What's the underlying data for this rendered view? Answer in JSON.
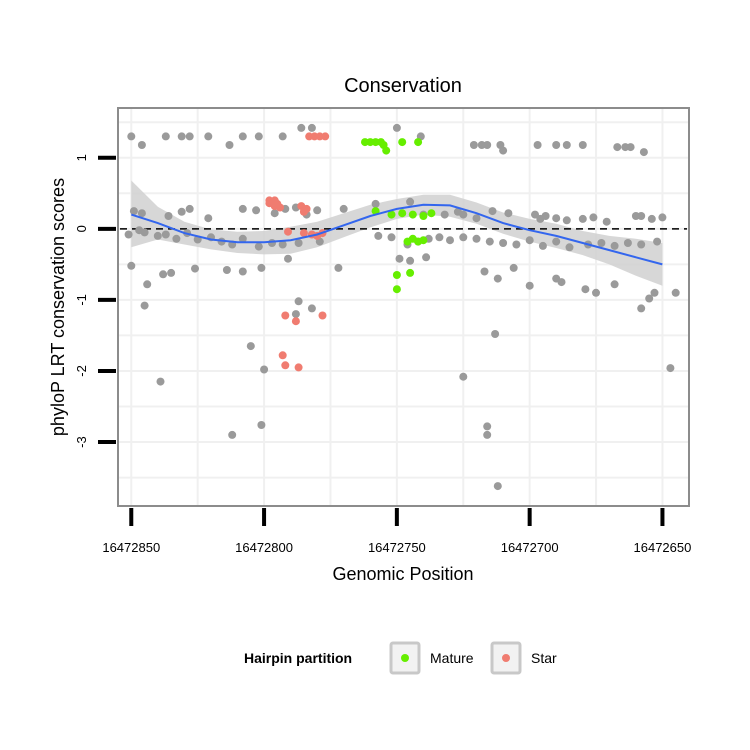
{
  "chart_data": {
    "type": "scatter",
    "title": "Conservation",
    "xlabel": "Genomic Position",
    "ylabel": "phyloP LRT conservation scores",
    "x_reversed": true,
    "xlim": [
      16472855,
      16472640
    ],
    "ylim": [
      -3.9,
      1.7
    ],
    "x_ticks": [
      16472850,
      16472800,
      16472750,
      16472700,
      16472650
    ],
    "x_tick_labels": [
      "16472850",
      "16472800",
      "16472750",
      "16472700",
      "16472650"
    ],
    "y_ticks": [
      1,
      0,
      -1,
      -2,
      -3
    ],
    "y_tick_labels": [
      "1",
      "0",
      "-1",
      "-2",
      "-3"
    ],
    "reference_line": {
      "y": 0,
      "style": "dashed"
    },
    "legend": {
      "title": "Hairpin partition",
      "position": "bottom",
      "entries": [
        {
          "label": "Mature",
          "color": "#66ee00"
        },
        {
          "label": "Star",
          "color": "#f07c70"
        }
      ]
    },
    "colors": {
      "other": "#9a9a9a",
      "Mature": "#66ee00",
      "Star": "#f07c70",
      "smooth": "#3366ee",
      "band": "#d0d0d0"
    },
    "series": [
      {
        "name": "Other",
        "points": [
          [
            16472850,
            1.3
          ],
          [
            16472846,
            1.18
          ],
          [
            16472837,
            1.3
          ],
          [
            16472831,
            1.3
          ],
          [
            16472828,
            1.3
          ],
          [
            16472821,
            1.3
          ],
          [
            16472813,
            1.18
          ],
          [
            16472808,
            1.3
          ],
          [
            16472802,
            1.3
          ],
          [
            16472793,
            1.3
          ],
          [
            16472786,
            1.42
          ],
          [
            16472782,
            1.42
          ],
          [
            16472750,
            1.42
          ],
          [
            16472741,
            1.3
          ],
          [
            16472721,
            1.18
          ],
          [
            16472718,
            1.18
          ],
          [
            16472716,
            1.18
          ],
          [
            16472711,
            1.18
          ],
          [
            16472710,
            1.1
          ],
          [
            16472697,
            1.18
          ],
          [
            16472690,
            1.18
          ],
          [
            16472686,
            1.18
          ],
          [
            16472680,
            1.18
          ],
          [
            16472667,
            1.15
          ],
          [
            16472664,
            1.15
          ],
          [
            16472662,
            1.15
          ],
          [
            16472657,
            1.08
          ],
          [
            16472849,
            0.25
          ],
          [
            16472846,
            0.22
          ],
          [
            16472836,
            0.18
          ],
          [
            16472831,
            0.24
          ],
          [
            16472828,
            0.28
          ],
          [
            16472821,
            0.15
          ],
          [
            16472808,
            0.28
          ],
          [
            16472803,
            0.26
          ],
          [
            16472796,
            0.22
          ],
          [
            16472792,
            0.28
          ],
          [
            16472788,
            0.3
          ],
          [
            16472784,
            0.2
          ],
          [
            16472780,
            0.26
          ],
          [
            16472770,
            0.28
          ],
          [
            16472758,
            0.35
          ],
          [
            16472745,
            0.38
          ],
          [
            16472740,
            0.2
          ],
          [
            16472732,
            0.2
          ],
          [
            16472727,
            0.24
          ],
          [
            16472725,
            0.2
          ],
          [
            16472720,
            0.15
          ],
          [
            16472714,
            0.25
          ],
          [
            16472708,
            0.22
          ],
          [
            16472698,
            0.2
          ],
          [
            16472696,
            0.14
          ],
          [
            16472694,
            0.18
          ],
          [
            16472690,
            0.15
          ],
          [
            16472686,
            0.12
          ],
          [
            16472680,
            0.14
          ],
          [
            16472676,
            0.16
          ],
          [
            16472671,
            0.1
          ],
          [
            16472660,
            0.18
          ],
          [
            16472658,
            0.18
          ],
          [
            16472654,
            0.14
          ],
          [
            16472650,
            0.16
          ],
          [
            16472851,
            -0.08
          ],
          [
            16472847,
            -0.02
          ],
          [
            16472845,
            -0.05
          ],
          [
            16472840,
            -0.1
          ],
          [
            16472837,
            -0.08
          ],
          [
            16472833,
            -0.14
          ],
          [
            16472829,
            -0.06
          ],
          [
            16472825,
            -0.15
          ],
          [
            16472820,
            -0.12
          ],
          [
            16472816,
            -0.18
          ],
          [
            16472812,
            -0.22
          ],
          [
            16472808,
            -0.14
          ],
          [
            16472802,
            -0.25
          ],
          [
            16472797,
            -0.2
          ],
          [
            16472793,
            -0.22
          ],
          [
            16472787,
            -0.2
          ],
          [
            16472779,
            -0.18
          ],
          [
            16472757,
            -0.1
          ],
          [
            16472752,
            -0.12
          ],
          [
            16472746,
            -0.22
          ],
          [
            16472742,
            -0.18
          ],
          [
            16472738,
            -0.14
          ],
          [
            16472734,
            -0.12
          ],
          [
            16472730,
            -0.16
          ],
          [
            16472725,
            -0.12
          ],
          [
            16472720,
            -0.14
          ],
          [
            16472715,
            -0.18
          ],
          [
            16472710,
            -0.2
          ],
          [
            16472705,
            -0.22
          ],
          [
            16472700,
            -0.16
          ],
          [
            16472695,
            -0.24
          ],
          [
            16472690,
            -0.18
          ],
          [
            16472685,
            -0.26
          ],
          [
            16472678,
            -0.22
          ],
          [
            16472673,
            -0.2
          ],
          [
            16472668,
            -0.24
          ],
          [
            16472663,
            -0.2
          ],
          [
            16472658,
            -0.22
          ],
          [
            16472652,
            -0.18
          ],
          [
            16472850,
            -0.52
          ],
          [
            16472844,
            -0.78
          ],
          [
            16472838,
            -0.64
          ],
          [
            16472835,
            -0.62
          ],
          [
            16472826,
            -0.56
          ],
          [
            16472814,
            -0.58
          ],
          [
            16472808,
            -0.6
          ],
          [
            16472801,
            -0.55
          ],
          [
            16472791,
            -0.42
          ],
          [
            16472772,
            -0.55
          ],
          [
            16472749,
            -0.42
          ],
          [
            16472745,
            -0.45
          ],
          [
            16472739,
            -0.4
          ],
          [
            16472717,
            -0.6
          ],
          [
            16472712,
            -0.7
          ],
          [
            16472706,
            -0.55
          ],
          [
            16472700,
            -0.8
          ],
          [
            16472690,
            -0.7
          ],
          [
            16472688,
            -0.75
          ],
          [
            16472679,
            -0.85
          ],
          [
            16472675,
            -0.9
          ],
          [
            16472668,
            -0.78
          ],
          [
            16472653,
            -0.9
          ],
          [
            16472645,
            -0.9
          ],
          [
            16472845,
            -1.08
          ],
          [
            16472787,
            -1.02
          ],
          [
            16472788,
            -1.2
          ],
          [
            16472782,
            -1.12
          ],
          [
            16472658,
            -1.12
          ],
          [
            16472655,
            -0.98
          ],
          [
            16472839,
            -2.15
          ],
          [
            16472805,
            -1.65
          ],
          [
            16472800,
            -1.98
          ],
          [
            16472812,
            -2.9
          ],
          [
            16472801,
            -2.76
          ],
          [
            16472725,
            -2.08
          ],
          [
            16472716,
            -2.78
          ],
          [
            16472716,
            -2.9
          ],
          [
            16472713,
            -1.48
          ],
          [
            16472712,
            -3.62
          ],
          [
            16472647,
            -1.96
          ]
        ]
      },
      {
        "name": "Mature",
        "points": [
          [
            16472762,
            1.22
          ],
          [
            16472760,
            1.22
          ],
          [
            16472758,
            1.22
          ],
          [
            16472756,
            1.22
          ],
          [
            16472755,
            1.18
          ],
          [
            16472754,
            1.1
          ],
          [
            16472748,
            1.22
          ],
          [
            16472742,
            1.22
          ],
          [
            16472758,
            0.25
          ],
          [
            16472752,
            0.2
          ],
          [
            16472748,
            0.22
          ],
          [
            16472744,
            0.2
          ],
          [
            16472740,
            0.18
          ],
          [
            16472737,
            0.22
          ],
          [
            16472746,
            -0.18
          ],
          [
            16472744,
            -0.14
          ],
          [
            16472742,
            -0.18
          ],
          [
            16472740,
            -0.16
          ],
          [
            16472750,
            -0.65
          ],
          [
            16472745,
            -0.62
          ],
          [
            16472750,
            -0.85
          ]
        ]
      },
      {
        "name": "Star",
        "points": [
          [
            16472798,
            0.4
          ],
          [
            16472796,
            0.4
          ],
          [
            16472795,
            0.35
          ],
          [
            16472798,
            0.36
          ],
          [
            16472796,
            0.32
          ],
          [
            16472794,
            0.3
          ],
          [
            16472786,
            0.32
          ],
          [
            16472784,
            0.28
          ],
          [
            16472785,
            0.24
          ],
          [
            16472791,
            -0.04
          ],
          [
            16472785,
            -0.06
          ],
          [
            16472782,
            -0.08
          ],
          [
            16472780,
            -0.1
          ],
          [
            16472778,
            -0.06
          ],
          [
            16472783,
            1.3
          ],
          [
            16472781,
            1.3
          ],
          [
            16472779,
            1.3
          ],
          [
            16472777,
            1.3
          ],
          [
            16472792,
            -1.22
          ],
          [
            16472788,
            -1.3
          ],
          [
            16472778,
            -1.22
          ],
          [
            16472793,
            -1.78
          ],
          [
            16472792,
            -1.92
          ],
          [
            16472787,
            -1.95
          ]
        ]
      }
    ],
    "smooth": {
      "x": [
        16472850,
        16472840,
        16472830,
        16472820,
        16472810,
        16472800,
        16472790,
        16472780,
        16472770,
        16472760,
        16472750,
        16472740,
        16472730,
        16472720,
        16472710,
        16472700,
        16472690,
        16472680,
        16472670,
        16472660,
        16472650
      ],
      "y": [
        0.2,
        0.08,
        -0.06,
        -0.15,
        -0.19,
        -0.19,
        -0.16,
        -0.08,
        0.05,
        0.18,
        0.28,
        0.34,
        0.33,
        0.22,
        0.08,
        -0.02,
        -0.1,
        -0.2,
        -0.3,
        -0.4,
        -0.5
      ],
      "lower": [
        -0.26,
        -0.15,
        -0.22,
        -0.29,
        -0.34,
        -0.36,
        -0.35,
        -0.26,
        -0.12,
        0.02,
        0.14,
        0.2,
        0.17,
        0.07,
        -0.07,
        -0.18,
        -0.27,
        -0.37,
        -0.5,
        -0.66,
        -0.8
      ],
      "upper": [
        0.68,
        0.31,
        0.1,
        -0.01,
        -0.04,
        -0.03,
        0.03,
        0.1,
        0.22,
        0.34,
        0.42,
        0.48,
        0.48,
        0.37,
        0.23,
        0.14,
        0.07,
        -0.03,
        -0.1,
        -0.14,
        -0.2
      ]
    }
  }
}
